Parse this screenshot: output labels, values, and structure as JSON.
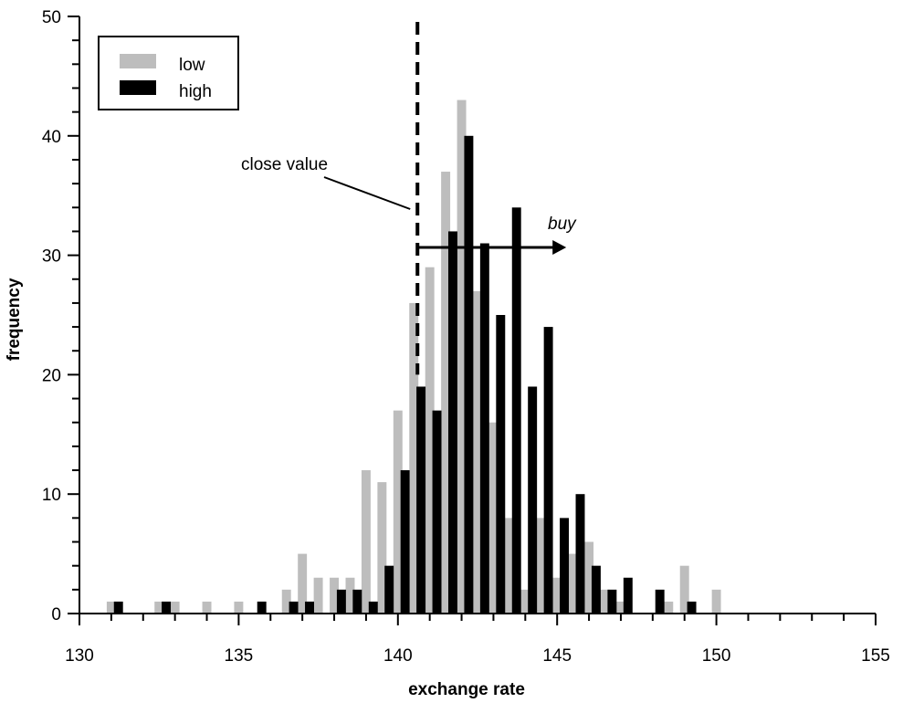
{
  "chart_data": {
    "type": "bar",
    "title": "",
    "xlabel": "exchange rate",
    "ylabel": "frequency",
    "xlim": [
      130,
      155
    ],
    "ylim": [
      0,
      50
    ],
    "bin_width": 0.5,
    "x_ticks": [
      130,
      135,
      140,
      145,
      150,
      155
    ],
    "y_ticks": [
      0,
      10,
      20,
      30,
      40,
      50
    ],
    "grid": false,
    "legend_position": "top-left",
    "series": [
      {
        "name": "low",
        "color": "#bdbdbd",
        "bins": [
          {
            "x": 131.0,
            "y": 1
          },
          {
            "x": 132.5,
            "y": 1
          },
          {
            "x": 133.0,
            "y": 1
          },
          {
            "x": 134.0,
            "y": 1
          },
          {
            "x": 135.0,
            "y": 1
          },
          {
            "x": 136.5,
            "y": 2
          },
          {
            "x": 137.0,
            "y": 5
          },
          {
            "x": 137.5,
            "y": 3
          },
          {
            "x": 138.0,
            "y": 3
          },
          {
            "x": 138.5,
            "y": 3
          },
          {
            "x": 139.0,
            "y": 12
          },
          {
            "x": 139.5,
            "y": 11
          },
          {
            "x": 140.0,
            "y": 17
          },
          {
            "x": 140.5,
            "y": 26
          },
          {
            "x": 141.0,
            "y": 29
          },
          {
            "x": 141.5,
            "y": 37
          },
          {
            "x": 142.0,
            "y": 43
          },
          {
            "x": 142.5,
            "y": 27
          },
          {
            "x": 143.0,
            "y": 16
          },
          {
            "x": 143.5,
            "y": 8
          },
          {
            "x": 144.0,
            "y": 2
          },
          {
            "x": 144.5,
            "y": 8
          },
          {
            "x": 145.0,
            "y": 3
          },
          {
            "x": 145.5,
            "y": 5
          },
          {
            "x": 146.0,
            "y": 6
          },
          {
            "x": 146.5,
            "y": 2
          },
          {
            "x": 147.0,
            "y": 1
          },
          {
            "x": 148.5,
            "y": 1
          },
          {
            "x": 149.0,
            "y": 4
          },
          {
            "x": 150.0,
            "y": 2
          }
        ]
      },
      {
        "name": "high",
        "color": "#000000",
        "bins": [
          {
            "x": 131.0,
            "y": 1
          },
          {
            "x": 132.5,
            "y": 1
          },
          {
            "x": 135.5,
            "y": 1
          },
          {
            "x": 136.5,
            "y": 1
          },
          {
            "x": 137.0,
            "y": 1
          },
          {
            "x": 138.0,
            "y": 2
          },
          {
            "x": 138.5,
            "y": 2
          },
          {
            "x": 139.0,
            "y": 1
          },
          {
            "x": 139.5,
            "y": 4
          },
          {
            "x": 140.0,
            "y": 12
          },
          {
            "x": 140.5,
            "y": 19
          },
          {
            "x": 141.0,
            "y": 17
          },
          {
            "x": 141.5,
            "y": 32
          },
          {
            "x": 142.0,
            "y": 40
          },
          {
            "x": 142.5,
            "y": 31
          },
          {
            "x": 143.0,
            "y": 25
          },
          {
            "x": 143.5,
            "y": 34
          },
          {
            "x": 144.0,
            "y": 19
          },
          {
            "x": 144.5,
            "y": 24
          },
          {
            "x": 145.0,
            "y": 8
          },
          {
            "x": 145.5,
            "y": 10
          },
          {
            "x": 146.0,
            "y": 4
          },
          {
            "x": 146.5,
            "y": 2
          },
          {
            "x": 147.0,
            "y": 3
          },
          {
            "x": 148.0,
            "y": 2
          },
          {
            "x": 149.0,
            "y": 1
          }
        ]
      }
    ],
    "annotations": {
      "close_value": {
        "label": "close value",
        "x": 140.5
      },
      "buy": {
        "label": "buy",
        "from_x": 140.5,
        "to_x": 145.0,
        "y": 30.5
      }
    }
  }
}
